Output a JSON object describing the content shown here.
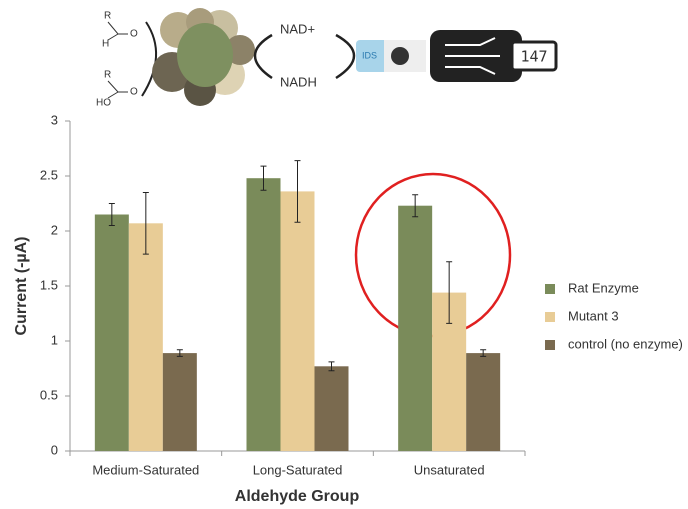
{
  "chart_data": {
    "type": "bar",
    "ylabel": "Current (-µA)",
    "xlabel": "Aldehyde Group",
    "categories": [
      "Medium-Saturated",
      "Long-Saturated",
      "Unsaturated"
    ],
    "series": [
      {
        "name": "Rat Enzyme",
        "color": "#7a8b5a",
        "values": [
          2.15,
          2.48,
          2.23
        ],
        "errors": [
          0.1,
          0.11,
          0.1
        ]
      },
      {
        "name": "Mutant 3",
        "color": "#e8cc96",
        "values": [
          2.07,
          2.36,
          1.44
        ],
        "errors": [
          0.28,
          0.28,
          0.28
        ]
      },
      {
        "name": "control (no enzyme)",
        "color": "#7a6a4f",
        "values": [
          0.89,
          0.77,
          0.89
        ],
        "errors": [
          0.03,
          0.04,
          0.03
        ]
      }
    ],
    "ylim": [
      0,
      3
    ],
    "yticks": [
      0,
      0.5,
      1,
      1.5,
      2,
      2.5,
      3
    ],
    "grid": false,
    "legend": "right"
  },
  "illustration": {
    "substrate_labels": [
      "R",
      "H",
      "O",
      "R",
      "HO",
      "O"
    ],
    "cofactors": [
      "NAD+",
      "NADH"
    ],
    "sensor_label": "IDS",
    "meter_reading": "147"
  }
}
